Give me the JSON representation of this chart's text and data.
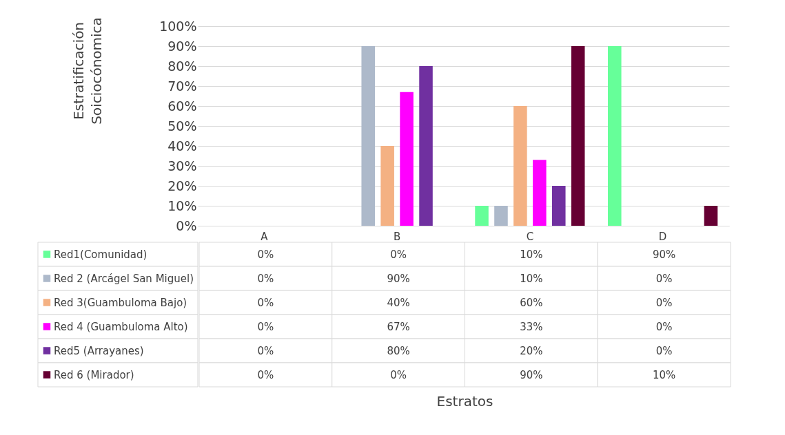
{
  "chart_data": {
    "type": "bar",
    "annotations": [
      "Estratos"
    ],
    "ylabel": "Estratificación\nSoiciocónomica",
    "categories": [
      "A",
      "B",
      "C",
      "D"
    ],
    "series": [
      {
        "name": "Red1(Comunidad)",
        "color": "#66ff99",
        "values": [
          0,
          0,
          10,
          90
        ],
        "value_labels": [
          "0%",
          "0%",
          "10%",
          "90%"
        ]
      },
      {
        "name": "Red 2 (Arcágel San Miguel)",
        "color": "#adb9ca",
        "values": [
          0,
          90,
          10,
          0
        ],
        "value_labels": [
          "0%",
          "90%",
          "10%",
          "0%"
        ]
      },
      {
        "name": "Red 3(Guambuloma Bajo)",
        "color": "#f4b183",
        "values": [
          0,
          40,
          60,
          0
        ],
        "value_labels": [
          "0%",
          "40%",
          "60%",
          "0%"
        ]
      },
      {
        "name": "Red 4 (Guambuloma Alto)",
        "color": "#ff00ff",
        "values": [
          0,
          67,
          33,
          0
        ],
        "value_labels": [
          "0%",
          "67%",
          "33%",
          "0%"
        ]
      },
      {
        "name": "Red5 (Arrayanes)",
        "color": "#7030a0",
        "values": [
          0,
          80,
          20,
          0
        ],
        "value_labels": [
          "0%",
          "80%",
          "20%",
          "0%"
        ]
      },
      {
        "name": "Red 6 (Mirador)",
        "color": "#660033",
        "values": [
          0,
          0,
          90,
          10
        ],
        "value_labels": [
          "0%",
          "0%",
          "90%",
          "10%"
        ]
      }
    ],
    "ylim": [
      0,
      100
    ],
    "yticks": [
      {
        "value": 0,
        "label": "0%"
      },
      {
        "value": 10,
        "label": "10%"
      },
      {
        "value": 20,
        "label": "20%"
      },
      {
        "value": 30,
        "label": "30%"
      },
      {
        "value": 40,
        "label": "40%"
      },
      {
        "value": 50,
        "label": "50%"
      },
      {
        "value": 60,
        "label": "60%"
      },
      {
        "value": 70,
        "label": "70%"
      },
      {
        "value": 80,
        "label": "80%"
      },
      {
        "value": 90,
        "label": "90%"
      },
      {
        "value": 100,
        "label": "100%"
      }
    ],
    "grid": "y",
    "legend": "bottom"
  }
}
